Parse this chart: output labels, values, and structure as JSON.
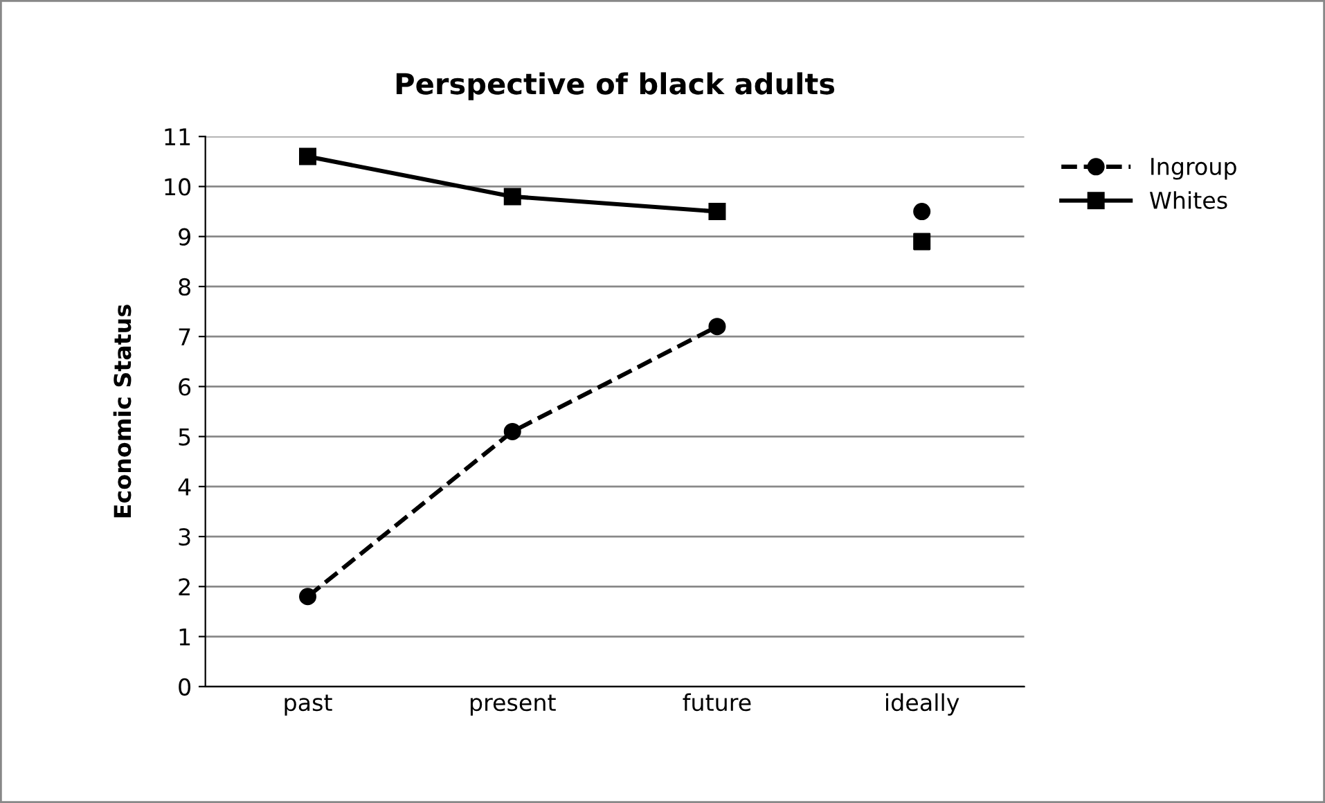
{
  "chart_data": {
    "type": "line",
    "title": "Perspective of black adults",
    "ylabel": "Economic Status",
    "categories": [
      "past",
      "present",
      "future",
      "ideally"
    ],
    "series": [
      {
        "name": "Ingroup",
        "color": "#000000",
        "values": [
          1.8,
          5.1,
          7.2,
          null
        ],
        "marker": "circle",
        "line_style": "dashed"
      },
      {
        "name": "Whites",
        "color": "#000000",
        "values": [
          10.6,
          9.8,
          9.5,
          null
        ],
        "marker": "square",
        "line_style": "solid"
      },
      {
        "type": "scatter",
        "color": "#000000",
        "values": [
          null,
          null,
          null,
          9.5
        ],
        "marker": "circle"
      },
      {
        "type": "scatter",
        "color": "#000000",
        "values": [
          null,
          null,
          null,
          8.9
        ],
        "marker": "square"
      }
    ],
    "ylim": [
      0,
      11
    ],
    "yticks": [
      0,
      1,
      2,
      3,
      4,
      5,
      6,
      7,
      8,
      9,
      10,
      11
    ],
    "grid": "y",
    "legend": "right"
  }
}
